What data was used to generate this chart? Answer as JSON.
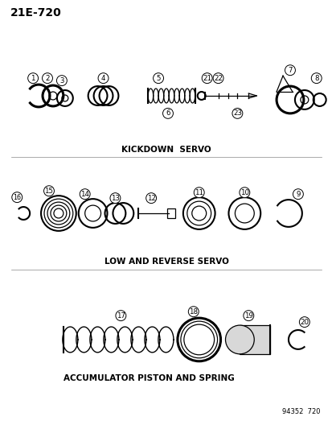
{
  "title": "21E-720",
  "background_color": "#ffffff",
  "text_color": "#000000",
  "line_color": "#000000",
  "section1_label": "KICKDOWN  SERVO",
  "section2_label": "LOW AND REVERSE SERVO",
  "section3_label": "ACCUMULATOR PISTON AND SPRING",
  "catalog_number": "94352  720",
  "fig_width": 4.14,
  "fig_height": 5.33,
  "dpi": 100
}
